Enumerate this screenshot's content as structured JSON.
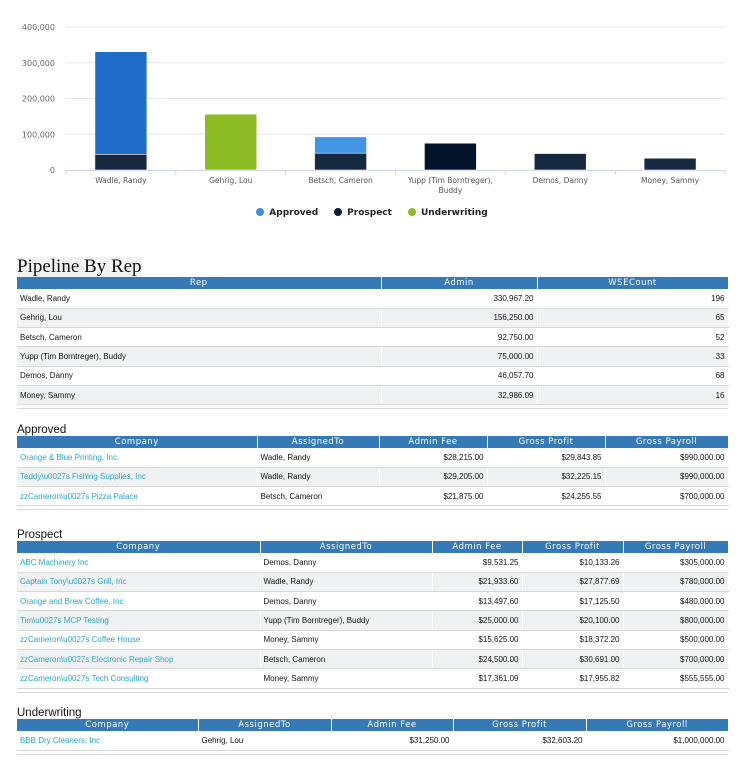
{
  "chart_data": {
    "type": "bar",
    "stacked": true,
    "categories": [
      "Wadle, Randy",
      "Gehrig, Lou",
      "Betsch, Cameron",
      "Yupp (Tim Borntreger), Buddy",
      "Demos, Danny",
      "Money, Sammy"
    ],
    "series": [
      {
        "name": "Approved",
        "color": "#1f6dc6",
        "values": [
          286967,
          0,
          45750,
          0,
          0,
          0
        ]
      },
      {
        "name": "Prospect",
        "color": "#16293f",
        "values": [
          44000,
          0,
          47000,
          75000,
          46058,
          32986
        ]
      },
      {
        "name": "Underwriting",
        "color": "#8cbb23",
        "values": [
          0,
          156250,
          0,
          0,
          0,
          0
        ]
      }
    ],
    "legend_colors": [
      "#3b8ee0",
      "#0f1e33",
      "#8cbb23"
    ],
    "yticks": [
      "0",
      "100,000",
      "200,000",
      "300,000",
      "400,000"
    ],
    "ylim": [
      0,
      400000
    ],
    "grid": true,
    "legend": "bottom"
  },
  "pipeline": {
    "title": "Pipeline By Rep",
    "headers": [
      "Rep",
      "Admin",
      "WSECount"
    ],
    "rows": [
      [
        "Wadle, Randy",
        "330,967.20",
        "196"
      ],
      [
        "Gehrig, Lou",
        "156,250.00",
        "65"
      ],
      [
        "Betsch, Cameron",
        "92,750.00",
        "52"
      ],
      [
        "Yupp (Tim Borntreger), Buddy",
        "75,000.00",
        "33"
      ],
      [
        "Demos, Danny",
        "46,057.70",
        "68"
      ],
      [
        "Money, Sammy",
        "32,986.09",
        "16"
      ]
    ]
  },
  "approved": {
    "title": "Approved",
    "headers": [
      "Company",
      "AssignedTo",
      "Admin Fee",
      "Gross Profit",
      "Gross Payroll"
    ],
    "rows": [
      [
        "Orange & Blue Printing, Inc.",
        "Wadle, Randy",
        "$28,215.00",
        "$29,843.85",
        "$990,000.00"
      ],
      [
        "Teddy\\u0027s Fishing Supplies, Inc",
        "Wadle, Randy",
        "$29,205.00",
        "$32,225.15",
        "$990,000.00"
      ],
      [
        "zzCameron\\u0027s Pizza Palace",
        "Betsch, Cameron",
        "$21,875.00",
        "$24,255.55",
        "$700,000.00"
      ]
    ]
  },
  "prospect": {
    "title": "Prospect",
    "headers": [
      "Company",
      "AssignedTo",
      "Admin Fee",
      "Gross Profit",
      "Gross Payroll"
    ],
    "rows": [
      [
        "ABC Machinery Inc",
        "Demos, Danny",
        "$9,531.25",
        "$10,133.26",
        "$305,000.00"
      ],
      [
        "Captain Tony\\u0027s Grill, Inc",
        "Wadle, Randy",
        "$21,933.60",
        "$27,877.69",
        "$780,000.00"
      ],
      [
        "Orange and Brew Coffee, Inc",
        "Demos, Danny",
        "$13,497.60",
        "$17,125.50",
        "$480,000.00"
      ],
      [
        "Tim\\u0027s MCP Testing",
        "Yupp (Tim Borntreger), Buddy",
        "$25,000.00",
        "$20,100.00",
        "$800,000.00"
      ],
      [
        "zzCameron\\u0027s Coffee House",
        "Money, Sammy",
        "$15,625.00",
        "$18,372.20",
        "$500,000.00"
      ],
      [
        "zzCameron\\u0027s Electronic Repair Shop",
        "Betsch, Cameron",
        "$24,500.00",
        "$30,691.00",
        "$700,000.00"
      ],
      [
        "zzCameron\\u0027s Tech Consulting",
        "Money, Sammy",
        "$17,361.09",
        "$17,955.82",
        "$555,555.00"
      ]
    ]
  },
  "underwriting": {
    "title": "Underwriting",
    "headers": [
      "Company",
      "AssignedTo",
      "Admin Fee",
      "Gross Profit",
      "Gross Payroll"
    ],
    "rows": [
      [
        "BBB Dry Cleaners, Inc.",
        "Gehrig, Lou",
        "$31,250.00",
        "$32,603.20",
        "$1,000,000.00"
      ]
    ]
  }
}
